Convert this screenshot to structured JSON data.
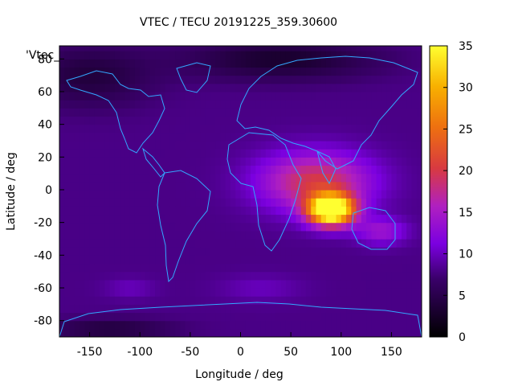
{
  "chart_data": {
    "type": "heatmap",
    "title": "VTEC / TECU 20191225_359.30600",
    "xlabel": "Longitude / deg",
    "ylabel": "Latitude / deg",
    "series_key": "'Vtec_",
    "xlim": [
      -180,
      180
    ],
    "ylim": [
      -90,
      88
    ],
    "x_ticks": [
      -150,
      -100,
      -50,
      0,
      50,
      100,
      150
    ],
    "y_ticks": [
      -80,
      -60,
      -40,
      -20,
      0,
      20,
      40,
      60,
      80
    ],
    "colorbar": {
      "range": [
        0,
        35
      ],
      "ticks": [
        0,
        5,
        10,
        15,
        20,
        25,
        30,
        35
      ]
    },
    "background_level": 8,
    "features": [
      {
        "lon": 90,
        "lat": -12,
        "peak": 35,
        "spread_lon": 22,
        "spread_lat": 9
      },
      {
        "lon": 75,
        "lat": 5,
        "peak": 12,
        "spread_lon": 55,
        "spread_lat": 18
      },
      {
        "lon": 140,
        "lat": -25,
        "peak": 6,
        "spread_lon": 25,
        "spread_lat": 8
      },
      {
        "lon": -150,
        "lat": 70,
        "peak": -4,
        "spread_lon": 60,
        "spread_lat": 18
      },
      {
        "lon": 40,
        "lat": 80,
        "peak": -5,
        "spread_lon": 90,
        "spread_lat": 12
      },
      {
        "lon": -130,
        "lat": -85,
        "peak": -4,
        "spread_lon": 60,
        "spread_lat": 6
      },
      {
        "lon": 20,
        "lat": -60,
        "peak": 2,
        "spread_lon": 40,
        "spread_lat": 8
      },
      {
        "lon": -110,
        "lat": -60,
        "peak": 2,
        "spread_lon": 25,
        "spread_lat": 6
      }
    ]
  }
}
